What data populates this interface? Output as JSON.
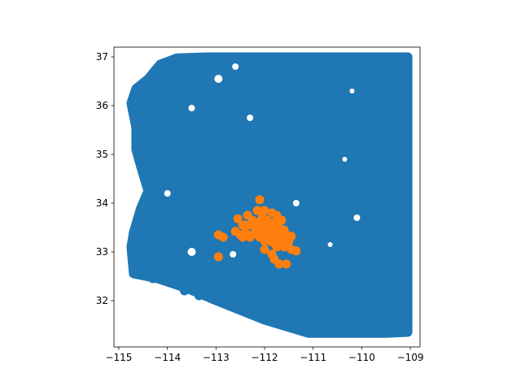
{
  "chart_data": {
    "type": "scatter",
    "title": "",
    "xlabel": "",
    "ylabel": "",
    "xlim": [
      -115.1,
      -108.8
    ],
    "ylim": [
      31.05,
      37.2
    ],
    "grid": false,
    "x_ticks": [
      "−115",
      "−114",
      "−113",
      "−112",
      "−111",
      "−110",
      "−109"
    ],
    "x_tick_values": [
      -115,
      -114,
      -113,
      -112,
      -111,
      -110,
      -109
    ],
    "y_ticks": [
      "32",
      "33",
      "34",
      "35",
      "36",
      "37"
    ],
    "y_tick_values": [
      32,
      33,
      34,
      35,
      36,
      37
    ],
    "series": [
      {
        "color": "#1f77b4",
        "region_outline": [
          [
            -114.7,
            32.55
          ],
          [
            -114.75,
            33.1
          ],
          [
            -114.7,
            33.4
          ],
          [
            -114.55,
            33.9
          ],
          [
            -114.4,
            34.25
          ],
          [
            -114.55,
            34.75
          ],
          [
            -114.65,
            35.1
          ],
          [
            -114.65,
            35.55
          ],
          [
            -114.75,
            36.05
          ],
          [
            -114.65,
            36.35
          ],
          [
            -114.4,
            36.55
          ],
          [
            -114.15,
            36.85
          ],
          [
            -113.8,
            36.98
          ],
          [
            -113.2,
            37.0
          ],
          [
            -112.0,
            37.0
          ],
          [
            -110.5,
            37.0
          ],
          [
            -109.05,
            37.0
          ],
          [
            -109.05,
            36.0
          ],
          [
            -109.05,
            35.0
          ],
          [
            -109.05,
            34.0
          ],
          [
            -109.05,
            33.0
          ],
          [
            -109.05,
            32.0
          ],
          [
            -109.05,
            31.35
          ],
          [
            -109.5,
            31.33
          ],
          [
            -110.5,
            31.33
          ],
          [
            -111.1,
            31.33
          ],
          [
            -111.5,
            31.45
          ],
          [
            -112.0,
            31.6
          ],
          [
            -112.5,
            31.8
          ],
          [
            -113.0,
            32.0
          ],
          [
            -113.6,
            32.25
          ],
          [
            -114.2,
            32.45
          ],
          [
            -114.7,
            32.55
          ]
        ],
        "sample_points": [
          [
            -114.63,
            36.1
          ],
          [
            -114.55,
            36.05
          ],
          [
            -114.5,
            36.12
          ],
          [
            -114.38,
            36.12
          ],
          [
            -113.65,
            32.2
          ],
          [
            -113.35,
            32.1
          ],
          [
            -113.1,
            32.1
          ],
          [
            -112.85,
            32.1
          ],
          [
            -114.3,
            32.45
          ],
          [
            -114.45,
            32.6
          ],
          [
            -114.6,
            33.4
          ],
          [
            -114.55,
            33.3
          ]
        ]
      },
      {
        "color": "#ff7f0e",
        "points": [
          [
            -112.1,
            34.07
          ],
          [
            -112.15,
            33.85
          ],
          [
            -112.0,
            33.85
          ],
          [
            -111.85,
            33.8
          ],
          [
            -111.75,
            33.75
          ],
          [
            -112.35,
            33.75
          ],
          [
            -112.55,
            33.68
          ],
          [
            -112.25,
            33.65
          ],
          [
            -112.1,
            33.62
          ],
          [
            -111.95,
            33.65
          ],
          [
            -111.8,
            33.6
          ],
          [
            -111.65,
            33.65
          ],
          [
            -112.45,
            33.55
          ],
          [
            -112.3,
            33.55
          ],
          [
            -112.15,
            33.5
          ],
          [
            -112.0,
            33.5
          ],
          [
            -111.85,
            33.5
          ],
          [
            -111.7,
            33.5
          ],
          [
            -111.6,
            33.45
          ],
          [
            -112.6,
            33.42
          ],
          [
            -112.4,
            33.4
          ],
          [
            -112.2,
            33.4
          ],
          [
            -112.05,
            33.38
          ],
          [
            -111.9,
            33.38
          ],
          [
            -111.75,
            33.38
          ],
          [
            -111.55,
            33.35
          ],
          [
            -111.45,
            33.32
          ],
          [
            -112.5,
            33.35
          ],
          [
            -112.3,
            33.3
          ],
          [
            -112.1,
            33.3
          ],
          [
            -111.95,
            33.28
          ],
          [
            -111.8,
            33.3
          ],
          [
            -111.65,
            33.28
          ],
          [
            -111.5,
            33.22
          ],
          [
            -112.45,
            33.3
          ],
          [
            -112.0,
            33.22
          ],
          [
            -111.85,
            33.2
          ],
          [
            -111.7,
            33.2
          ],
          [
            -111.55,
            33.15
          ],
          [
            -111.75,
            33.1
          ],
          [
            -111.6,
            33.1
          ],
          [
            -111.45,
            33.05
          ],
          [
            -111.35,
            33.02
          ],
          [
            -112.0,
            33.05
          ],
          [
            -111.85,
            32.95
          ],
          [
            -111.8,
            32.85
          ],
          [
            -111.7,
            32.75
          ],
          [
            -111.55,
            32.75
          ],
          [
            -112.95,
            33.35
          ],
          [
            -112.85,
            33.3
          ],
          [
            -112.95,
            32.9
          ],
          [
            -112.4,
            33.55
          ],
          [
            -112.25,
            33.35
          ],
          [
            -111.9,
            33.6
          ],
          [
            -112.05,
            33.72
          ],
          [
            -111.75,
            33.28
          ]
        ]
      }
    ]
  }
}
